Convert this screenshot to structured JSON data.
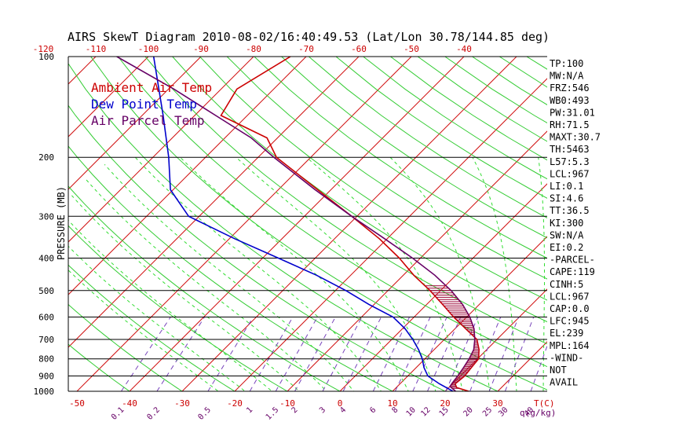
{
  "chart_data": {
    "type": "line",
    "title": "AIRS SkewT Diagram 2010-08-02/16:40:49.53 (Lat/Lon 30.78/144.85 deg)",
    "ylabel": "PRESSURE (MB)",
    "xlabel_temp": "T(C)",
    "xlabel_mix": "q(g/kg)",
    "pressure_ticks": [
      100,
      200,
      300,
      400,
      500,
      600,
      700,
      800,
      900,
      1000
    ],
    "temp_ticks_bottom": [
      -50,
      -40,
      -30,
      -20,
      -10,
      0,
      10,
      20,
      30
    ],
    "temp_ticks_top": [
      -120,
      -110,
      -100,
      -90,
      -80,
      -70,
      -60,
      -50,
      -40
    ],
    "mixing_ratio_labels": [
      "0.1",
      "0.2",
      "0.5",
      "1",
      "1.5",
      "2",
      "3",
      "4",
      "6",
      "8",
      "10",
      "12",
      "15",
      "20",
      "25",
      "30",
      "40"
    ],
    "legend": [
      {
        "name": "Ambient Air Temp",
        "color": "#cc0000"
      },
      {
        "name": "Dew Point Temp",
        "color": "#0000cc"
      },
      {
        "name": "Air Parcel Temp",
        "color": "#660066"
      }
    ],
    "series": [
      {
        "name": "Ambient Air Temp",
        "color": "#cc0000",
        "points": [
          [
            1000,
            24.5
          ],
          [
            975,
            21.5
          ],
          [
            950,
            20.5
          ],
          [
            900,
            20.8
          ],
          [
            850,
            20.5
          ],
          [
            800,
            20.2
          ],
          [
            750,
            18.5
          ],
          [
            700,
            16.2
          ],
          [
            650,
            12.0
          ],
          [
            600,
            7.5
          ],
          [
            550,
            3.0
          ],
          [
            500,
            -2.0
          ],
          [
            450,
            -8.0
          ],
          [
            400,
            -14.0
          ],
          [
            350,
            -21.5
          ],
          [
            300,
            -31.0
          ],
          [
            250,
            -42.5
          ],
          [
            200,
            -56.5
          ],
          [
            175,
            -62.0
          ],
          [
            150,
            -75.0
          ],
          [
            125,
            -77.0
          ],
          [
            100,
            -73.0
          ]
        ]
      },
      {
        "name": "Dew Point Temp",
        "color": "#0000cc",
        "points": [
          [
            1000,
            21.5
          ],
          [
            950,
            17.5
          ],
          [
            900,
            13.8
          ],
          [
            850,
            11.5
          ],
          [
            800,
            9.5
          ],
          [
            750,
            7.0
          ],
          [
            700,
            4.0
          ],
          [
            650,
            0.5
          ],
          [
            600,
            -4.0
          ],
          [
            550,
            -11.0
          ],
          [
            500,
            -18.0
          ],
          [
            450,
            -26.5
          ],
          [
            400,
            -37.0
          ],
          [
            350,
            -49.0
          ],
          [
            300,
            -62.0
          ],
          [
            250,
            -70.5
          ],
          [
            200,
            -77.0
          ],
          [
            150,
            -86.0
          ],
          [
            100,
            -99.0
          ]
        ]
      },
      {
        "name": "Air Parcel Temp",
        "color": "#660066",
        "points": [
          [
            1000,
            22.0
          ],
          [
            967,
            20.0
          ],
          [
            945,
            19.8
          ],
          [
            900,
            19.5
          ],
          [
            850,
            19.0
          ],
          [
            800,
            18.4
          ],
          [
            750,
            17.5
          ],
          [
            700,
            15.8
          ],
          [
            650,
            13.6
          ],
          [
            600,
            10.6
          ],
          [
            550,
            6.8
          ],
          [
            500,
            2.0
          ],
          [
            450,
            -4.0
          ],
          [
            400,
            -11.5
          ],
          [
            350,
            -20.5
          ],
          [
            300,
            -31.0
          ],
          [
            250,
            -43.0
          ],
          [
            200,
            -57.0
          ],
          [
            175,
            -65.0
          ],
          [
            150,
            -76.0
          ],
          [
            125,
            -89.0
          ],
          [
            100,
            -106.0
          ]
        ]
      }
    ],
    "indices": [
      "TP:100",
      "MW:N/A",
      "FRZ:546",
      "WB0:493",
      "PW:31.01",
      "RH:71.5",
      "MAXT:30.7",
      "TH:5463",
      "L57:5.3",
      "LCL:967",
      "LI:0.1",
      "SI:4.6",
      "TT:36.5",
      "KI:300",
      "SW:N/A",
      "EI:0.2",
      "-PARCEL-",
      "CAPE:119",
      "CINH:5",
      "LCL:967",
      "CAP:0.0",
      "LFC:945",
      "EL:239",
      "MPL:164",
      "-WIND-",
      "NOT",
      "AVAIL"
    ]
  }
}
